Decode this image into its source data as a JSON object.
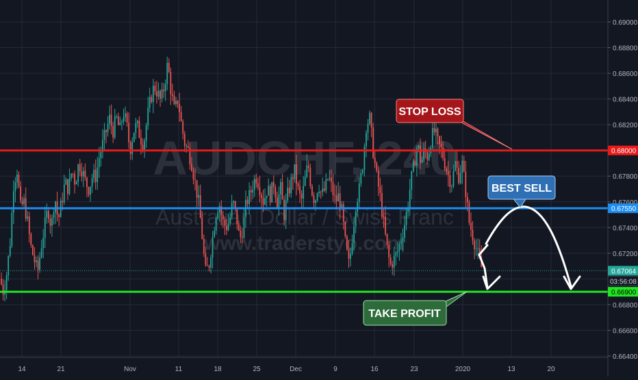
{
  "chart_data": {
    "type": "candlestick",
    "symbol": "AUDCHF",
    "interval": "240",
    "watermark": {
      "symbol_interval": "AUDCHF, 240",
      "description": "Australian Dollar / Swiss Franc",
      "site": "www.traderstyo.com"
    },
    "y_ticks": [
      "0.69000",
      "0.68800",
      "0.68600",
      "0.68400",
      "0.68200",
      "0.68000",
      "0.67800",
      "0.67600",
      "0.67400",
      "0.67200",
      "0.67000",
      "0.66800",
      "0.66600",
      "0.66400"
    ],
    "ylim": [
      0.6638,
      0.6907
    ],
    "x_ticks": [
      "14",
      "21",
      "Nov",
      "11",
      "18",
      "25",
      "Dec",
      "9",
      "16",
      "23",
      "2020",
      "13",
      "20"
    ],
    "grid": true,
    "price_path": [
      [
        0,
        0.67
      ],
      [
        5,
        0.669
      ],
      [
        10,
        0.6705
      ],
      [
        15,
        0.673
      ],
      [
        20,
        0.6775
      ],
      [
        25,
        0.6785
      ],
      [
        30,
        0.6755
      ],
      [
        35,
        0.676
      ],
      [
        40,
        0.6745
      ],
      [
        45,
        0.6725
      ],
      [
        50,
        0.6715
      ],
      [
        55,
        0.6705
      ],
      [
        60,
        0.6725
      ],
      [
        65,
        0.674
      ],
      [
        70,
        0.6755
      ],
      [
        75,
        0.674
      ],
      [
        80,
        0.6765
      ],
      [
        85,
        0.6745
      ],
      [
        90,
        0.676
      ],
      [
        95,
        0.6775
      ],
      [
        100,
        0.677
      ],
      [
        105,
        0.6785
      ],
      [
        110,
        0.6775
      ],
      [
        115,
        0.679
      ],
      [
        120,
        0.6785
      ],
      [
        125,
        0.6775
      ],
      [
        130,
        0.677
      ],
      [
        135,
        0.678
      ],
      [
        140,
        0.678
      ],
      [
        145,
        0.6795
      ],
      [
        150,
        0.6805
      ],
      [
        155,
        0.6815
      ],
      [
        160,
        0.6825
      ],
      [
        165,
        0.6815
      ],
      [
        170,
        0.6825
      ],
      [
        175,
        0.6815
      ],
      [
        180,
        0.683
      ],
      [
        185,
        0.682
      ],
      [
        190,
        0.68
      ],
      [
        195,
        0.6815
      ],
      [
        200,
        0.682
      ],
      [
        205,
        0.681
      ],
      [
        210,
        0.6805
      ],
      [
        215,
        0.6825
      ],
      [
        220,
        0.684
      ],
      [
        225,
        0.685
      ],
      [
        230,
        0.6845
      ],
      [
        235,
        0.6838
      ],
      [
        240,
        0.685
      ],
      [
        245,
        0.6868
      ],
      [
        250,
        0.6845
      ],
      [
        255,
        0.683
      ],
      [
        260,
        0.684
      ],
      [
        265,
        0.682
      ],
      [
        270,
        0.6805
      ],
      [
        275,
        0.68
      ],
      [
        280,
        0.679
      ],
      [
        285,
        0.6775
      ],
      [
        290,
        0.676
      ],
      [
        295,
        0.6735
      ],
      [
        300,
        0.6705
      ],
      [
        305,
        0.671
      ],
      [
        310,
        0.673
      ],
      [
        315,
        0.675
      ],
      [
        320,
        0.676
      ],
      [
        325,
        0.6745
      ],
      [
        330,
        0.674
      ],
      [
        335,
        0.6745
      ],
      [
        340,
        0.676
      ],
      [
        345,
        0.675
      ],
      [
        350,
        0.673
      ],
      [
        355,
        0.674
      ],
      [
        360,
        0.676
      ],
      [
        365,
        0.6765
      ],
      [
        370,
        0.6775
      ],
      [
        375,
        0.678
      ],
      [
        380,
        0.677
      ],
      [
        385,
        0.676
      ],
      [
        390,
        0.677
      ],
      [
        395,
        0.6765
      ],
      [
        400,
        0.6775
      ],
      [
        405,
        0.676
      ],
      [
        410,
        0.677
      ],
      [
        415,
        0.675
      ],
      [
        420,
        0.6765
      ],
      [
        425,
        0.6775
      ],
      [
        430,
        0.6785
      ],
      [
        435,
        0.677
      ],
      [
        440,
        0.676
      ],
      [
        445,
        0.6775
      ],
      [
        450,
        0.679
      ],
      [
        455,
        0.677
      ],
      [
        460,
        0.676
      ],
      [
        465,
        0.6775
      ],
      [
        470,
        0.6765
      ],
      [
        475,
        0.677
      ],
      [
        480,
        0.678
      ],
      [
        485,
        0.677
      ],
      [
        490,
        0.676
      ],
      [
        495,
        0.6765
      ],
      [
        500,
        0.675
      ],
      [
        505,
        0.6725
      ],
      [
        510,
        0.671
      ],
      [
        515,
        0.6735
      ],
      [
        520,
        0.676
      ],
      [
        525,
        0.677
      ],
      [
        530,
        0.679
      ],
      [
        535,
        0.682
      ],
      [
        540,
        0.6825
      ],
      [
        545,
        0.68
      ],
      [
        550,
        0.678
      ],
      [
        555,
        0.6765
      ],
      [
        560,
        0.6745
      ],
      [
        565,
        0.6725
      ],
      [
        570,
        0.671
      ],
      [
        575,
        0.6715
      ],
      [
        580,
        0.672
      ],
      [
        585,
        0.673
      ],
      [
        590,
        0.674
      ],
      [
        595,
        0.6755
      ],
      [
        600,
        0.6775
      ],
      [
        605,
        0.679
      ],
      [
        610,
        0.6805
      ],
      [
        615,
        0.679
      ],
      [
        620,
        0.68
      ],
      [
        625,
        0.6795
      ],
      [
        630,
        0.681
      ],
      [
        635,
        0.6815
      ],
      [
        640,
        0.6805
      ],
      [
        645,
        0.68
      ],
      [
        650,
        0.679
      ],
      [
        655,
        0.678
      ],
      [
        660,
        0.6775
      ],
      [
        665,
        0.679
      ],
      [
        670,
        0.678
      ],
      [
        675,
        0.679
      ],
      [
        680,
        0.677
      ],
      [
        685,
        0.6745
      ],
      [
        690,
        0.6735
      ],
      [
        695,
        0.6725
      ],
      [
        700,
        0.6715
      ],
      [
        705,
        0.6706
      ]
    ],
    "horizontal_lines": [
      {
        "name": "STOP LOSS",
        "price": "0.68000",
        "color": "#e81a1a",
        "box_color": "#a5161b"
      },
      {
        "name": "BEST SELL",
        "price": "0.67550",
        "color": "#1f8ef0",
        "box_color": "#2f6fb4"
      },
      {
        "name": "TAKE PROFIT",
        "price": "0.66900",
        "color": "#22e622",
        "box_color": "#2e6b3b"
      }
    ],
    "last_price": {
      "price": "0.67064",
      "countdown": "03:56:08",
      "color": "#26a69a"
    },
    "colors": {
      "up": "#26a69a",
      "down": "#ef5350",
      "grid": "#242a38",
      "axis_text": "#b2b5be"
    }
  }
}
